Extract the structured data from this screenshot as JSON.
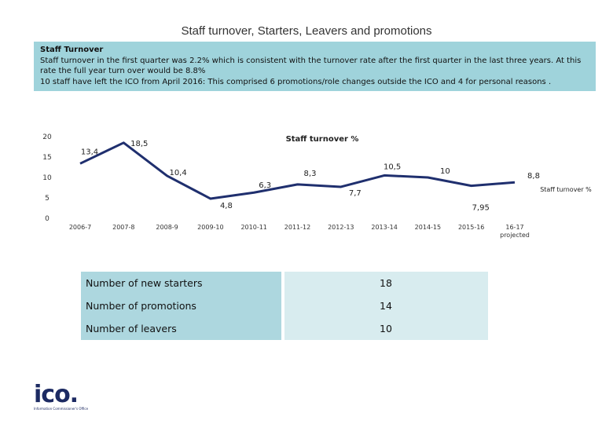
{
  "page_title": "Staff turnover, Starters, Leavers and promotions",
  "intro": {
    "heading": "Staff Turnover",
    "lines": [
      "Staff turnover in the first quarter was 2.2% which is consistent with the turnover rate after the first quarter in the last three years. At this",
      "rate the full year turn over would be 8.8%",
      "10 staff have left the ICO from April 2016: This comprised 6 promotions/role changes outside the ICO and 4 for personal reasons ."
    ]
  },
  "chart_data": {
    "type": "line",
    "title": "Staff turnover %",
    "categories": [
      "2006-7",
      "2007-8",
      "2008-9",
      "2009-10",
      "2010-11",
      "2011-12",
      "2012-13",
      "2013-14",
      "2014-15",
      "2015-16",
      "16-17 projected"
    ],
    "series": [
      {
        "name": "Staff turnover %",
        "values": [
          13.4,
          18.5,
          10.4,
          4.8,
          6.3,
          8.3,
          7.7,
          10.5,
          10,
          7.95,
          8.8
        ],
        "labels": [
          "13,4",
          "18,5",
          "10,4",
          "4,8",
          "6,3",
          "8,3",
          "7,7",
          "10,5",
          "10",
          "7,95",
          "8,8"
        ],
        "color": "#1f2f6e"
      }
    ],
    "yticks": [
      "0",
      "5",
      "10",
      "15",
      "20"
    ],
    "ylim": [
      0,
      20
    ],
    "grid": false,
    "legend_position": "right"
  },
  "stats": [
    {
      "label": "Number of new starters",
      "value": "18"
    },
    {
      "label": "Number of promotions",
      "value": "14"
    },
    {
      "label": "Number of leavers",
      "value": "10"
    }
  ],
  "logo": {
    "word": "ico.",
    "tagline": "Information Commissioner's Office"
  }
}
